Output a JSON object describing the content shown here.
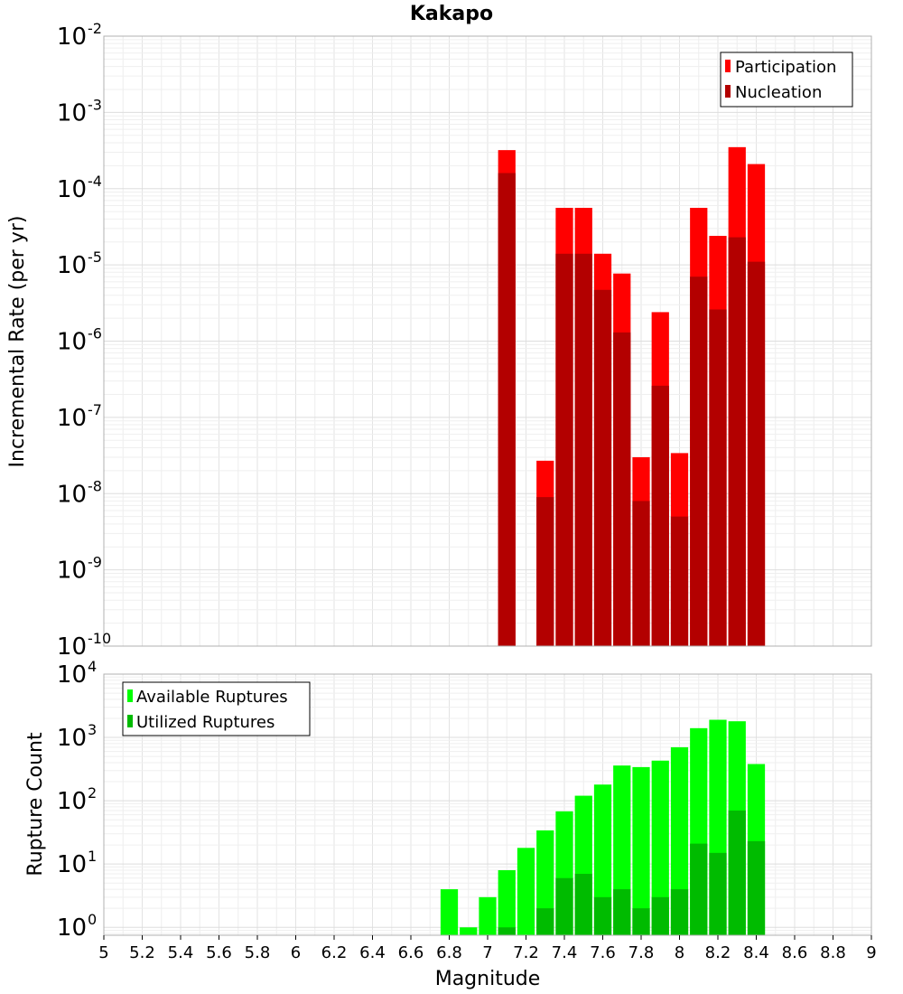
{
  "chart_data": [
    {
      "type": "bar",
      "title": "Kakapo",
      "xlabel": "",
      "ylabel": "Incremental Rate (per yr)",
      "yscale": "log",
      "ylim": [
        1e-10,
        0.01
      ],
      "xlim": [
        5,
        9
      ],
      "bar_width": 0.1,
      "grid": true,
      "legend": "top-right",
      "yticks": [
        {
          "base": "10",
          "exp": "-10",
          "value": 1e-10
        },
        {
          "base": "10",
          "exp": "-9",
          "value": 1e-09
        },
        {
          "base": "10",
          "exp": "-8",
          "value": 1e-08
        },
        {
          "base": "10",
          "exp": "-7",
          "value": 1e-07
        },
        {
          "base": "10",
          "exp": "-6",
          "value": 1e-06
        },
        {
          "base": "10",
          "exp": "-5",
          "value": 1e-05
        },
        {
          "base": "10",
          "exp": "-4",
          "value": 0.0001
        },
        {
          "base": "10",
          "exp": "-3",
          "value": 0.001
        },
        {
          "base": "10",
          "exp": "-2",
          "value": 0.01
        }
      ],
      "x": [
        7.1,
        7.3,
        7.4,
        7.5,
        7.6,
        7.7,
        7.8,
        7.9,
        8.0,
        8.1,
        8.2,
        8.3,
        8.4
      ],
      "series": [
        {
          "name": "Participation",
          "color": "#ff0000",
          "values": [
            0.00032,
            2.7e-08,
            5.6e-05,
            5.6e-05,
            1.4e-05,
            7.7e-06,
            3e-08,
            2.4e-06,
            3.4e-08,
            5.6e-05,
            2.4e-05,
            0.00035,
            0.00021
          ]
        },
        {
          "name": "Nucleation",
          "color": "#b30000",
          "values": [
            0.00016,
            9e-09,
            1.4e-05,
            1.4e-05,
            4.7e-06,
            1.3e-06,
            8e-09,
            2.6e-07,
            5e-09,
            7e-06,
            2.6e-06,
            2.3e-05,
            1.1e-05
          ]
        }
      ]
    },
    {
      "type": "bar",
      "title": "",
      "xlabel": "Magnitude",
      "ylabel": "Rupture Count",
      "yscale": "log",
      "ylim": [
        0.75,
        10000
      ],
      "xlim": [
        5,
        9
      ],
      "bar_width": 0.1,
      "grid": true,
      "legend": "top-left",
      "yticks": [
        {
          "base": "10",
          "exp": "0",
          "value": 1
        },
        {
          "base": "10",
          "exp": "1",
          "value": 10
        },
        {
          "base": "10",
          "exp": "2",
          "value": 100
        },
        {
          "base": "10",
          "exp": "3",
          "value": 1000
        },
        {
          "base": "10",
          "exp": "4",
          "value": 10000
        }
      ],
      "xticks": [
        "5",
        "5.2",
        "5.4",
        "5.6",
        "5.8",
        "6",
        "6.2",
        "6.4",
        "6.6",
        "6.8",
        "7",
        "7.2",
        "7.4",
        "7.6",
        "7.8",
        "8",
        "8.2",
        "8.4",
        "8.6",
        "8.8",
        "9"
      ],
      "x": [
        6.8,
        6.9,
        7.0,
        7.1,
        7.2,
        7.3,
        7.4,
        7.5,
        7.6,
        7.7,
        7.8,
        7.9,
        8.0,
        8.1,
        8.2,
        8.3,
        8.4
      ],
      "series": [
        {
          "name": "Available Ruptures",
          "color": "#00ff00",
          "values": [
            4,
            1,
            3,
            8,
            18,
            34,
            68,
            120,
            180,
            360,
            340,
            430,
            700,
            1400,
            1900,
            1800,
            380
          ]
        },
        {
          "name": "Utilized Ruptures",
          "color": "#00bb00",
          "values": [
            0,
            0,
            0,
            1,
            0,
            2,
            6,
            7,
            3,
            4,
            2,
            3,
            4,
            21,
            15,
            70,
            23
          ]
        }
      ]
    }
  ]
}
